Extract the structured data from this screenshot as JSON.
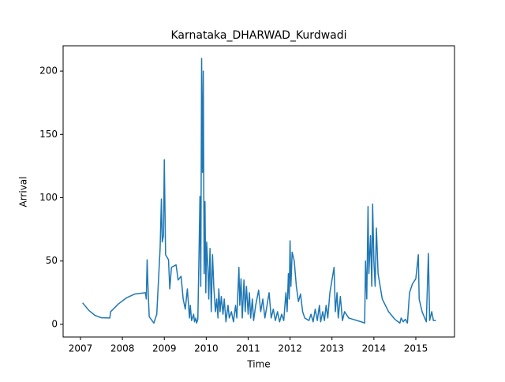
{
  "chart_data": {
    "type": "line",
    "title": "Karnataka_DHARWAD_Kurdwadi",
    "xlabel": "Time",
    "ylabel": "Arrival",
    "x": [
      2007.05,
      2007.2,
      2007.35,
      2007.5,
      2007.7,
      2007.72,
      2007.9,
      2008.1,
      2008.3,
      2008.55,
      2008.57,
      2008.59,
      2008.61,
      2008.64,
      2008.75,
      2008.82,
      2008.9,
      2008.93,
      2008.95,
      2008.98,
      2009.0,
      2009.03,
      2009.1,
      2009.13,
      2009.17,
      2009.28,
      2009.33,
      2009.4,
      2009.45,
      2009.5,
      2009.55,
      2009.6,
      2009.62,
      2009.65,
      2009.7,
      2009.72,
      2009.75,
      2009.77,
      2009.8,
      2009.83,
      2009.85,
      2009.87,
      2009.89,
      2009.91,
      2009.93,
      2009.95,
      2009.97,
      2009.99,
      2010.01,
      2010.04,
      2010.06,
      2010.09,
      2010.12,
      2010.15,
      2010.18,
      2010.22,
      2010.25,
      2010.28,
      2010.3,
      2010.33,
      2010.36,
      2010.4,
      2010.43,
      2010.47,
      2010.52,
      2010.55,
      2010.6,
      2010.65,
      2010.7,
      2010.73,
      2010.78,
      2010.8,
      2010.83,
      2010.86,
      2010.9,
      2010.93,
      2010.96,
      2011.0,
      2011.03,
      2011.06,
      2011.1,
      2011.13,
      2011.18,
      2011.25,
      2011.3,
      2011.35,
      2011.4,
      2011.45,
      2011.5,
      2011.55,
      2011.6,
      2011.65,
      2011.7,
      2011.75,
      2011.8,
      2011.85,
      2011.9,
      2011.93,
      2011.96,
      2011.98,
      2012.0,
      2012.02,
      2012.05,
      2012.1,
      2012.15,
      2012.2,
      2012.25,
      2012.3,
      2012.35,
      2012.45,
      2012.5,
      2012.55,
      2012.6,
      2012.65,
      2012.7,
      2012.73,
      2012.78,
      2012.82,
      2012.86,
      2012.9,
      2012.95,
      2013.0,
      2013.05,
      2013.08,
      2013.12,
      2013.15,
      2013.2,
      2013.25,
      2013.3,
      2013.4,
      2013.5,
      2013.7,
      2013.78,
      2013.8,
      2013.83,
      2013.86,
      2013.88,
      2013.92,
      2013.95,
      2013.97,
      2014.0,
      2014.03,
      2014.06,
      2014.1,
      2014.2,
      2014.35,
      2014.5,
      2014.62,
      2014.65,
      2014.7,
      2014.75,
      2014.8,
      2014.85,
      2014.92,
      2015.0,
      2015.06,
      2015.08,
      2015.15,
      2015.25,
      2015.3,
      2015.33,
      2015.38,
      2015.42,
      2015.48
    ],
    "series": [
      {
        "color": "#1f77b4",
        "values": [
          17,
          11,
          7,
          5.2,
          5,
          10,
          16,
          21,
          24,
          25,
          20,
          51,
          30,
          6,
          1,
          8,
          60,
          99,
          65,
          70,
          130,
          55,
          51,
          28,
          45,
          47,
          35,
          38,
          20,
          12,
          28,
          5,
          15,
          3,
          8,
          2,
          5,
          1,
          4,
          60,
          101,
          30,
          210,
          120,
          200,
          40,
          97,
          25,
          65,
          45,
          20,
          60,
          10,
          55,
          30,
          10,
          20,
          5,
          28,
          10,
          22,
          8,
          20,
          2,
          15,
          5,
          10,
          2,
          15,
          5,
          45,
          15,
          36,
          5,
          35,
          10,
          30,
          8,
          25,
          5,
          20,
          3,
          15,
          27,
          10,
          20,
          5,
          15,
          25,
          5,
          12,
          3,
          10,
          2,
          8,
          3,
          25,
          10,
          40,
          20,
          66,
          30,
          57,
          50,
          30,
          18,
          24,
          10,
          5,
          3,
          8,
          2,
          12,
          3,
          15,
          2,
          10,
          3,
          15,
          5,
          25,
          35,
          45,
          10,
          25,
          5,
          22,
          3,
          10,
          5,
          4,
          2,
          1,
          50,
          20,
          93,
          40,
          70,
          30,
          95,
          50,
          30,
          76,
          40,
          20,
          10,
          4,
          1,
          5,
          2,
          4,
          1,
          25,
          32,
          36,
          55,
          20,
          10,
          2,
          56,
          3,
          10,
          3,
          3
        ]
      }
    ],
    "xlim": [
      2006.586,
      2015.923
    ],
    "xticks": [
      2007,
      2008,
      2009,
      2010,
      2011,
      2012,
      2013,
      2014,
      2015
    ],
    "ylim": [
      -10,
      220
    ],
    "yticks": [
      0,
      50,
      100,
      150,
      200
    ]
  }
}
